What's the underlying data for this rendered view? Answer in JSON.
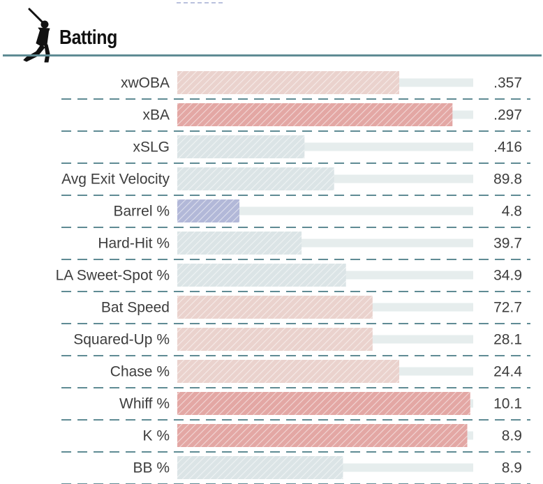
{
  "section": {
    "title": "Batting",
    "icon": "batter-icon",
    "rule_color": "#5f8b94"
  },
  "chart_data": {
    "type": "bar",
    "orientation": "horizontal",
    "xlim": [
      0,
      100
    ],
    "grid": false,
    "legend": "none",
    "colors": {
      "track": "#e6eded",
      "above_strong": "#e3a7a4",
      "above_mild": "#ead2cd",
      "neutral": "#dbe4e6",
      "below": "#b2b8d8",
      "separator": "#5f8b94"
    },
    "rows": [
      {
        "label": "xwOBA",
        "value_text": ".357",
        "percentile": 75,
        "color": "above_mild"
      },
      {
        "label": "xBA",
        "value_text": ".297",
        "percentile": 93,
        "color": "above_strong"
      },
      {
        "label": "xSLG",
        "value_text": ".416",
        "percentile": 43,
        "color": "neutral"
      },
      {
        "label": "Avg Exit Velocity",
        "value_text": "89.8",
        "percentile": 53,
        "color": "neutral"
      },
      {
        "label": "Barrel %",
        "value_text": "4.8",
        "percentile": 21,
        "color": "below"
      },
      {
        "label": "Hard-Hit %",
        "value_text": "39.7",
        "percentile": 42,
        "color": "neutral"
      },
      {
        "label": "LA Sweet-Spot %",
        "value_text": "34.9",
        "percentile": 57,
        "color": "neutral"
      },
      {
        "label": "Bat Speed",
        "value_text": "72.7",
        "percentile": 66,
        "color": "above_mild"
      },
      {
        "label": "Squared-Up %",
        "value_text": "28.1",
        "percentile": 66,
        "color": "above_mild"
      },
      {
        "label": "Chase %",
        "value_text": "24.4",
        "percentile": 75,
        "color": "above_mild"
      },
      {
        "label": "Whiff %",
        "value_text": "10.1",
        "percentile": 99,
        "color": "above_strong"
      },
      {
        "label": "K %",
        "value_text": "8.9",
        "percentile": 98,
        "color": "above_strong"
      },
      {
        "label": "BB %",
        "value_text": "8.9",
        "percentile": 56,
        "color": "neutral"
      }
    ]
  }
}
